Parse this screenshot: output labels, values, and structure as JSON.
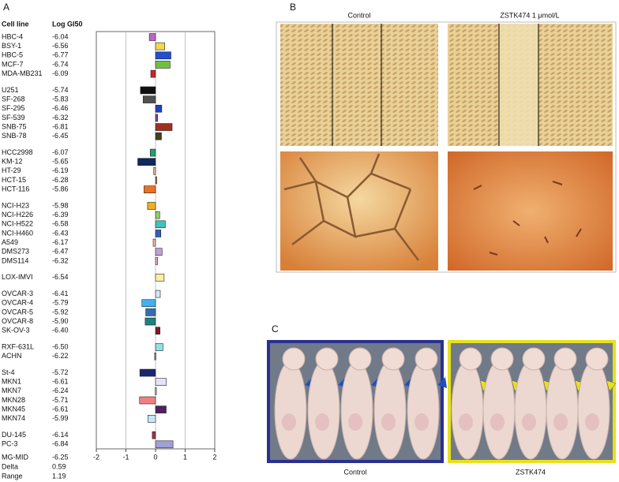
{
  "panel_labels": [
    "A",
    "B",
    "C"
  ],
  "chart_data": {
    "type": "mean-graph",
    "headers": [
      "Cell line",
      "Log GI50"
    ],
    "groups": [
      {
        "categories": [
          "HBC-4",
          "BSY-1",
          "HBC-5",
          "MCF-7",
          "MDA-MB231"
        ],
        "values": [
          -6.04,
          -6.56,
          -6.77,
          -6.74,
          -6.09
        ],
        "value_labels": [
          "-6.04",
          "-6.56",
          "-6.77",
          "-6.74",
          "-6.09"
        ],
        "colors": [
          "#c064c8",
          "#f0d850",
          "#2050d0",
          "#70c040",
          "#d02020"
        ]
      },
      {
        "categories": [
          "U251",
          "SF-268",
          "SF-295",
          "SF-539",
          "SNB-75",
          "SNB-78"
        ],
        "values": [
          -5.74,
          -5.83,
          -6.46,
          -6.32,
          -6.81,
          -6.45
        ],
        "value_labels": [
          "-5.74",
          "-5.83",
          "-6.46",
          "-6.32",
          "-6.81",
          "-6.45"
        ],
        "colors": [
          "#101010",
          "#505050",
          "#2040c0",
          "#8040a0",
          "#a03020",
          "#404020"
        ]
      },
      {
        "categories": [
          "HCC2998",
          "KM-12",
          "HT-29",
          "HCT-15",
          "HCT-116"
        ],
        "values": [
          -6.07,
          -5.65,
          -6.19,
          -6.28,
          -5.86
        ],
        "value_labels": [
          "-6.07",
          "-5.65",
          "-6.19",
          "-6.28",
          "-5.86"
        ],
        "colors": [
          "#20a070",
          "#102860",
          "#e0c0a0",
          "#e06020",
          "#f07020"
        ]
      },
      {
        "categories": [
          "NCI-H23",
          "NCI-H226",
          "NCI-H522",
          "NCI-H460",
          "A549",
          "DMS273",
          "DMS114"
        ],
        "values": [
          -5.98,
          -6.39,
          -6.58,
          -6.43,
          -6.17,
          -6.47,
          -6.32
        ],
        "value_labels": [
          "-5.98",
          "-6.39",
          "-6.58",
          "-6.43",
          "-6.17",
          "-6.47",
          "-6.32"
        ],
        "colors": [
          "#f0b020",
          "#90d060",
          "#40c0c0",
          "#3060c0",
          "#f0c0a0",
          "#c0a0d8",
          "#f0b0c0"
        ]
      },
      {
        "categories": [
          "LOX-IMVI"
        ],
        "values": [
          -6.54
        ],
        "value_labels": [
          "-6.54"
        ],
        "colors": [
          "#f8f0a0"
        ]
      },
      {
        "categories": [
          "OVCAR-3",
          "OVCAR-4",
          "OVCAR-5",
          "OVCAR-8",
          "SK-OV-3"
        ],
        "values": [
          -6.41,
          -5.79,
          -5.92,
          -5.9,
          -6.4
        ],
        "value_labels": [
          "-6.41",
          "-5.79",
          "-5.92",
          "-5.90",
          "-6.40"
        ],
        "colors": [
          "#d0e8f8",
          "#40b0f0",
          "#3070b0",
          "#208080",
          "#801828"
        ]
      },
      {
        "categories": [
          "RXF-631L",
          "ACHN"
        ],
        "values": [
          -6.5,
          -6.22
        ],
        "value_labels": [
          "-6.50",
          "-6.22"
        ],
        "colors": [
          "#90e0e8",
          "#808080"
        ]
      },
      {
        "categories": [
          "St-4",
          "MKN1",
          "MKN7",
          "MKN28",
          "MKN45",
          "MKN74"
        ],
        "values": [
          -5.72,
          -6.61,
          -6.24,
          -5.71,
          -6.61,
          -5.99
        ],
        "value_labels": [
          "-5.72",
          "-6.61",
          "-6.24",
          "-5.71",
          "-6.61",
          "-5.99"
        ],
        "colors": [
          "#182870",
          "#e8e0f8",
          "#c0c0c0",
          "#f08080",
          "#502060",
          "#c0e8f8"
        ]
      },
      {
        "categories": [
          "DU-145",
          "PC-3"
        ],
        "values": [
          -6.14,
          -6.84
        ],
        "value_labels": [
          "-6.14",
          "-6.84"
        ],
        "colors": [
          "#a03050",
          "#a0a0d8"
        ]
      }
    ],
    "summary": [
      {
        "label": "MG-MID",
        "value": -6.25,
        "value_label": "-6.25"
      },
      {
        "label": "Delta",
        "value": 0.59
      },
      {
        "label": "Range",
        "value": 1.19
      }
    ],
    "xlim": [
      -2,
      2
    ],
    "xticks": [
      -2,
      -1,
      0,
      1,
      2
    ],
    "grid_ticks": [
      -1,
      0,
      1
    ]
  },
  "panel_b": {
    "column_labels": [
      "Control",
      "ZSTK474  1 μmol/L"
    ]
  },
  "panel_c": {
    "labels": [
      "Control",
      "ZSTK474"
    ]
  }
}
